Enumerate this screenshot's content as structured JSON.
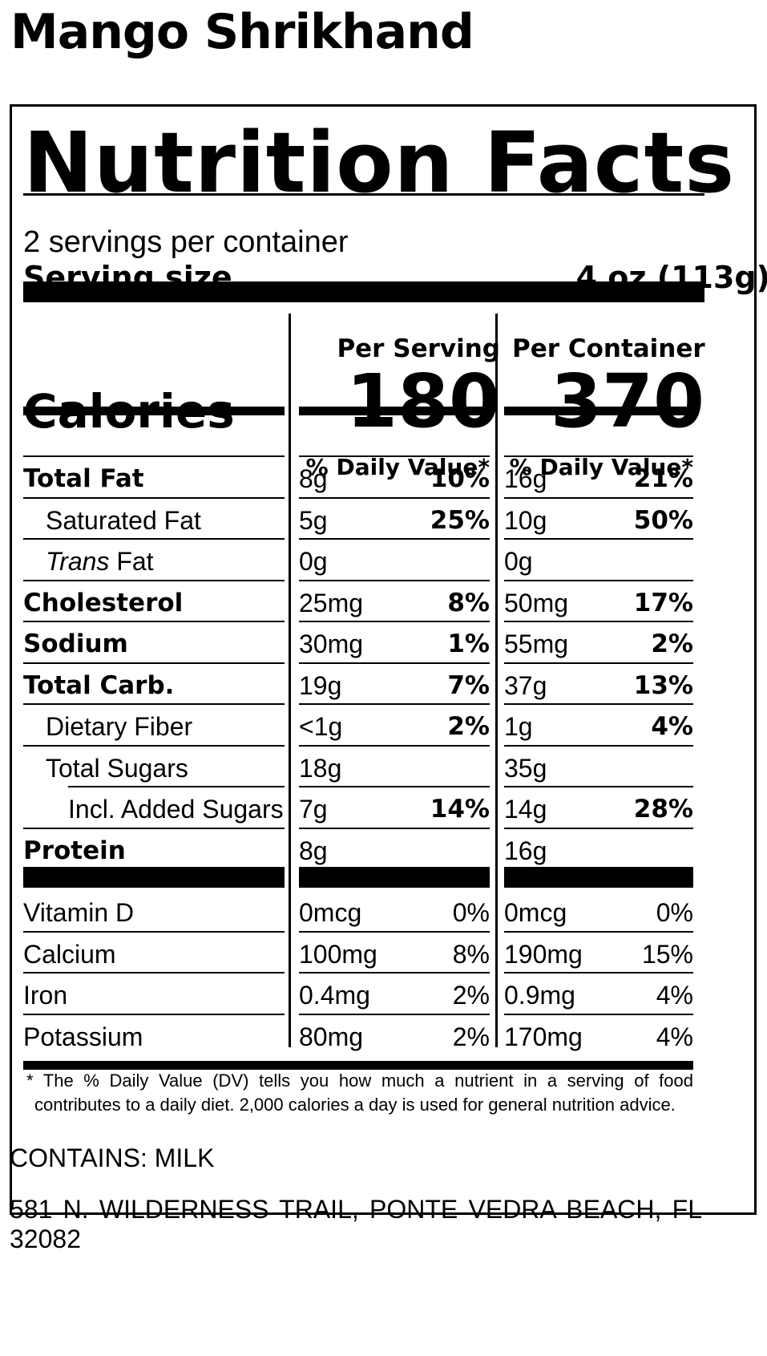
{
  "product_name": "Mango Shrikhand",
  "header": {
    "title": "Nutrition Facts",
    "servings_per_container": "2 servings per container",
    "serving_size_label": "Serving size",
    "serving_size_value": "4 oz (113g)"
  },
  "columns": {
    "per_serving": "Per Serving",
    "per_container": "Per Container",
    "dv_header": "% Daily Value*"
  },
  "calories": {
    "label": "Calories",
    "per_serving": "180",
    "per_container": "370"
  },
  "nutrients": [
    {
      "name": "Total Fat",
      "s_amt": "8g",
      "s_pct": "10%",
      "c_amt": "16g",
      "c_pct": "21%"
    },
    {
      "name": "Saturated Fat",
      "s_amt": "5g",
      "s_pct": "25%",
      "c_amt": "10g",
      "c_pct": "50%"
    },
    {
      "name_italic": "Trans",
      "name": "Fat",
      "s_amt": "0g",
      "s_pct": "",
      "c_amt": "0g",
      "c_pct": ""
    },
    {
      "name": "Cholesterol",
      "s_amt": "25mg",
      "s_pct": "8%",
      "c_amt": "50mg",
      "c_pct": "17%"
    },
    {
      "name": "Sodium",
      "s_amt": "30mg",
      "s_pct": "1%",
      "c_amt": "55mg",
      "c_pct": "2%"
    },
    {
      "name": "Total Carb.",
      "s_amt": "19g",
      "s_pct": "7%",
      "c_amt": "37g",
      "c_pct": "13%"
    },
    {
      "name": "Dietary Fiber",
      "s_amt": "<1g",
      "s_pct": "2%",
      "c_amt": "1g",
      "c_pct": "4%"
    },
    {
      "name": "Total Sugars",
      "s_amt": "18g",
      "s_pct": "",
      "c_amt": "35g",
      "c_pct": ""
    },
    {
      "name": "Incl. Added Sugars",
      "s_amt": "7g",
      "s_pct": "14%",
      "c_amt": "14g",
      "c_pct": "28%"
    },
    {
      "name": "Protein",
      "s_amt": "8g",
      "s_pct": "",
      "c_amt": "16g",
      "c_pct": ""
    }
  ],
  "vitamins": [
    {
      "name": "Vitamin D",
      "s_amt": "0mcg",
      "s_pct": "0%",
      "c_amt": "0mcg",
      "c_pct": "0%"
    },
    {
      "name": "Calcium",
      "s_amt": "100mg",
      "s_pct": "8%",
      "c_amt": "190mg",
      "c_pct": "15%"
    },
    {
      "name": "Iron",
      "s_amt": "0.4mg",
      "s_pct": "2%",
      "c_amt": "0.9mg",
      "c_pct": "4%"
    },
    {
      "name": "Potassium",
      "s_amt": "80mg",
      "s_pct": "2%",
      "c_amt": "170mg",
      "c_pct": "4%"
    }
  ],
  "footnote": {
    "line1": "* The % Daily Value (DV) tells you how much a nutrient in a serving of food",
    "line2": "contributes to a daily diet. 2,000 calories a day is used for general nutrition advice."
  },
  "allergen": "CONTAINS: MILK",
  "address_line1": "581 N. WILDERNESS TRAIL, PONTE VEDRA BEACH, FL",
  "address_line2": "32082"
}
